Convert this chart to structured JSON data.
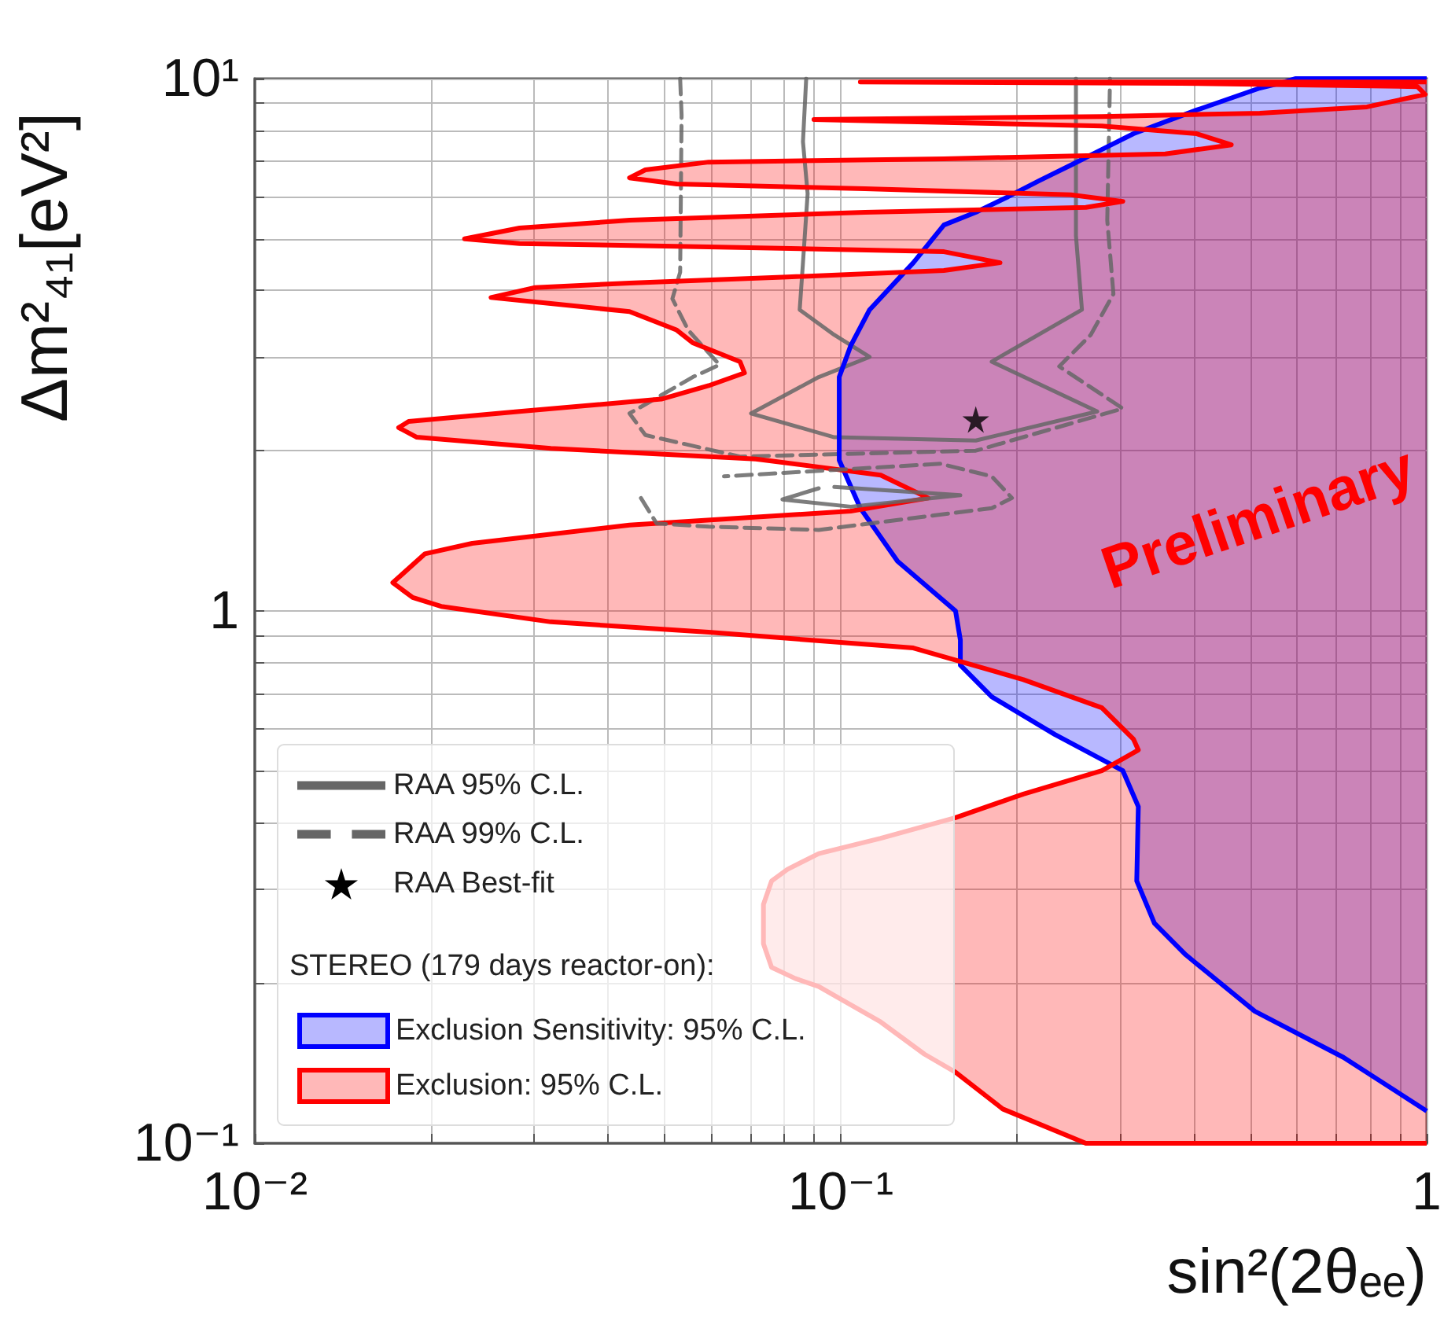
{
  "chart_data": {
    "type": "line",
    "xlabel": "sin²(2θₑₑ)",
    "ylabel": "Δm²₄₁[eV²]",
    "legend_title": "STEREO (179 days reactor-on):",
    "annotations": [
      "Preliminary"
    ],
    "log": "xy",
    "grid": true,
    "legend": "bottom left",
    "xlim": [
      0.01,
      1
    ],
    "ylim": [
      0.1,
      10
    ],
    "xticks": [
      {
        "value": 0.01,
        "label": "10⁻²"
      },
      {
        "value": 0.02,
        "label": null
      },
      {
        "value": 0.03,
        "label": null
      },
      {
        "value": 0.04,
        "label": null
      },
      {
        "value": 0.05,
        "label": null
      },
      {
        "value": 0.06,
        "label": null
      },
      {
        "value": 0.07,
        "label": null
      },
      {
        "value": 0.08,
        "label": null
      },
      {
        "value": 0.09,
        "label": null
      },
      {
        "value": 0.1,
        "label": "10⁻¹"
      },
      {
        "value": 0.2,
        "label": null
      },
      {
        "value": 0.3,
        "label": null
      },
      {
        "value": 0.4,
        "label": null
      },
      {
        "value": 0.5,
        "label": null
      },
      {
        "value": 0.6,
        "label": null
      },
      {
        "value": 0.7,
        "label": null
      },
      {
        "value": 0.8,
        "label": null
      },
      {
        "value": 0.9,
        "label": null
      },
      1
    ],
    "yticks": [
      {
        "value": 0.1,
        "label": "10⁻¹"
      },
      {
        "value": 0.2,
        "label": null
      },
      {
        "value": 0.3,
        "label": null
      },
      {
        "value": 0.4,
        "label": null
      },
      {
        "value": 0.5,
        "label": null
      },
      {
        "value": 0.6,
        "label": null
      },
      {
        "value": 0.7,
        "label": null
      },
      {
        "value": 0.8,
        "label": null
      },
      {
        "value": 0.9,
        "label": null
      },
      1,
      {
        "value": 2,
        "label": null
      },
      {
        "value": 3,
        "label": null
      },
      {
        "value": 4,
        "label": null
      },
      {
        "value": 5,
        "label": null
      },
      {
        "value": 6,
        "label": null
      },
      {
        "value": 7,
        "label": null
      },
      {
        "value": 8,
        "label": null
      },
      {
        "value": 9,
        "label": null
      },
      {
        "value": 10,
        "label": "10¹"
      }
    ],
    "series": [
      {
        "name": "RAA 95% C.L.",
        "color": "#666666",
        "line_style": "solid",
        "x": [
          0.0873,
          0.0862,
          0.0878,
          0.0862,
          0.0851,
          0.0975,
          0.112,
          0.0917,
          0.0703,
          0.0975,
          0.17,
          0.274,
          0.181,
          0.258,
          0.252,
          0.252,
          0.252
        ],
        "values": [
          10,
          7.61,
          6.08,
          4.51,
          3.68,
          3.3,
          3.0,
          2.75,
          2.35,
          2.12,
          2.09,
          2.37,
          2.94,
          3.68,
          5.07,
          9.8,
          10
        ]
      },
      {
        "name": "RAA 99% C.L.",
        "color": "#666666",
        "line_style": "dashed",
        "x": [
          0.0532,
          0.0535,
          0.0532,
          0.0516,
          0.0549,
          0.0621,
          0.0559,
          0.0436,
          0.0464,
          0.0673,
          0.17,
          0.303,
          0.236,
          0.267,
          0.292,
          0.285,
          0.288,
          0.288
        ],
        "values": [
          10,
          8.55,
          4.33,
          3.86,
          3.37,
          2.9,
          2.75,
          2.35,
          2.14,
          1.95,
          2.0,
          2.4,
          2.88,
          3.3,
          3.94,
          5.42,
          9.8,
          10
        ]
      },
      {
        "name": "RAA Best-fit",
        "type": "scatter",
        "color": "#000000",
        "marker": "star",
        "x": [
          0.17
        ],
        "values": [
          2.29
        ]
      },
      {
        "name": "Exclusion Sensitivity: 95% C.L.",
        "type": "area",
        "color": "#0000ff",
        "x": [
          1,
          0.598,
          0.562,
          0.519,
          0.405,
          0.316,
          0.279,
          0.247,
          0.218,
          0.193,
          0.17,
          0.15,
          0.133,
          0.112,
          0.104,
          0.0994,
          0.0994,
          0.0994,
          0.108,
          0.125,
          0.157,
          0.16,
          0.16,
          0.181,
          0.232,
          0.303,
          0.322,
          0.32,
          0.343,
          0.388,
          0.509,
          0.721,
          1.0
        ],
        "values": [
          10,
          10,
          9.8,
          9.6,
          8.73,
          7.88,
          7.36,
          6.88,
          6.43,
          6.0,
          5.61,
          5.31,
          4.51,
          3.68,
          3.15,
          2.75,
          2.2,
          1.92,
          1.56,
          1.24,
          1.0,
          0.882,
          0.791,
          0.69,
          0.586,
          0.501,
          0.429,
          0.311,
          0.259,
          0.226,
          0.177,
          0.145,
          0.115
        ]
      },
      {
        "name": "Exclusion: 95% C.L.",
        "type": "area",
        "color": "#ff0000",
        "x": [
          1,
          0.108,
          0.381,
          0.964,
          0.994,
          0.791,
          0.519,
          0.279,
          0.15,
          0.09,
          0.117,
          0.279,
          0.405,
          0.464,
          0.358,
          0.15,
          0.0595,
          0.0464,
          0.0436,
          0.0525,
          0.11,
          0.247,
          0.303,
          0.262,
          0.11,
          0.0436,
          0.0283,
          0.0228,
          0.0283,
          0.0595,
          0.15,
          0.187,
          0.15,
          0.0811,
          0.0436,
          0.0301,
          0.0253,
          0.032,
          0.0436,
          0.0494,
          0.0525,
          0.0559,
          0.0673,
          0.0685,
          0.0595,
          0.0494,
          0.0283,
          0.0183,
          0.0176,
          0.0189,
          0.032,
          0.0716,
          0.117,
          0.141,
          0.104,
          0.0436,
          0.0235,
          0.0195,
          0.0172,
          0.0186,
          0.0208,
          0.032,
          0.0595,
          0.133,
          0.205,
          0.279,
          0.316,
          0.322,
          0.279,
          0.205,
          0.157,
          0.117,
          0.0917,
          0.0811,
          0.0762,
          0.0738,
          0.0738,
          0.0762,
          0.0836,
          0.0917,
          0.117,
          0.139,
          0.157,
          0.189,
          0.262,
          1
        ],
        "values": [
          9.86,
          9.86,
          9.8,
          9.66,
          9.34,
          8.85,
          8.61,
          8.49,
          8.43,
          8.38,
          8.32,
          8.15,
          7.88,
          7.51,
          7.22,
          7.07,
          6.97,
          6.74,
          6.51,
          6.34,
          6.21,
          6.05,
          5.88,
          5.73,
          5.61,
          5.42,
          5.24,
          5.0,
          4.9,
          4.83,
          4.73,
          4.51,
          4.36,
          4.24,
          4.13,
          4.05,
          3.88,
          3.78,
          3.65,
          3.46,
          3.37,
          3.19,
          2.94,
          2.8,
          2.65,
          2.5,
          2.37,
          2.27,
          2.21,
          2.12,
          2.02,
          1.93,
          1.8,
          1.63,
          1.54,
          1.45,
          1.34,
          1.28,
          1.13,
          1.06,
          1.02,
          0.954,
          0.912,
          0.852,
          0.743,
          0.658,
          0.574,
          0.548,
          0.501,
          0.453,
          0.409,
          0.374,
          0.35,
          0.327,
          0.311,
          0.281,
          0.237,
          0.214,
          0.204,
          0.197,
          0.169,
          0.147,
          0.136,
          0.116,
          0.1,
          0.1
        ]
      },
      {
        "color": "#666666",
        "line_style": "solid",
        "x": [
          0.0975,
          0.16,
          0.104,
          0.0795,
          0.0917
        ],
        "values": [
          1.71,
          1.65,
          1.57,
          1.62,
          1.7
        ]
      },
      {
        "color": "#666666",
        "line_style": "dashed",
        "x": [
          0.0456,
          0.0485,
          0.0595,
          0.0917,
          0.181,
          0.196,
          0.181,
          0.148,
          0.0632
        ],
        "values": [
          1.63,
          1.46,
          1.44,
          1.42,
          1.56,
          1.63,
          1.79,
          1.89,
          1.79
        ]
      }
    ]
  }
}
